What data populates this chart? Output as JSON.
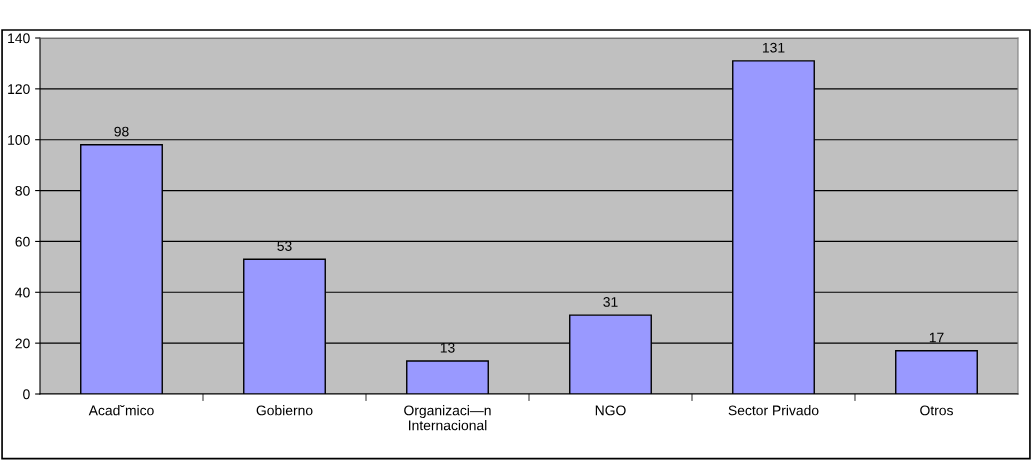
{
  "chart_data": {
    "type": "bar",
    "categories": [
      "Acad˘mico",
      "Gobierno",
      "Organizaci—n\nInternacional",
      "NGO",
      "Sector Privado",
      "Otros"
    ],
    "values": [
      98,
      53,
      13,
      31,
      131,
      17
    ],
    "color": "#9999ff",
    "ylim": [
      0,
      140
    ],
    "yticks": [
      0,
      20,
      40,
      60,
      80,
      100,
      120,
      140
    ],
    "grid": "y",
    "data_labels": true
  }
}
